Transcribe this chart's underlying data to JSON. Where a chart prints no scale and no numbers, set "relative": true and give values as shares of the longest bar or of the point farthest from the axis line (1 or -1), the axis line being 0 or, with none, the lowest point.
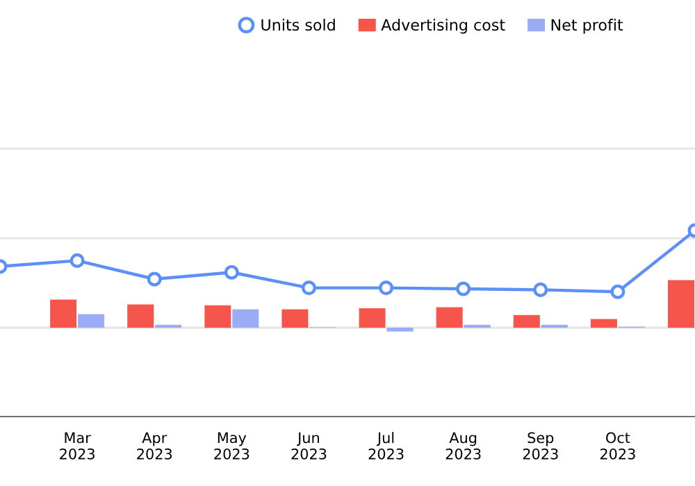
{
  "chart_data": {
    "type": "bar",
    "relative": true,
    "categories": [
      null,
      "Mar\n2023",
      "Apr\n2023",
      "May\n2023",
      "Jun\n2023",
      "Jul\n2023",
      "Aug\n2023",
      "Sep\n2023",
      "Oct\n2023",
      null
    ],
    "series": [
      {
        "name": "Units sold",
        "type": "line",
        "color": "#5b8ff9",
        "values": [
          0.63,
          0.69,
          0.5,
          0.57,
          0.41,
          0.41,
          0.4,
          0.39,
          0.37,
          1
        ]
      },
      {
        "name": "Advertising cost",
        "color": "#f5554a",
        "values": [
          null,
          0.29,
          0.24,
          0.23,
          0.19,
          0.2,
          0.21,
          0.13,
          0.09,
          0.49
        ]
      },
      {
        "name": "Net profit",
        "color": "#9babf6",
        "values": [
          null,
          0.14,
          0.03,
          0.19,
          0.005,
          -0.04,
          0.03,
          0.03,
          0.01,
          null
        ]
      }
    ],
    "marker": "circle",
    "grid": "y",
    "legend": "top",
    "tick_labels": "x"
  }
}
